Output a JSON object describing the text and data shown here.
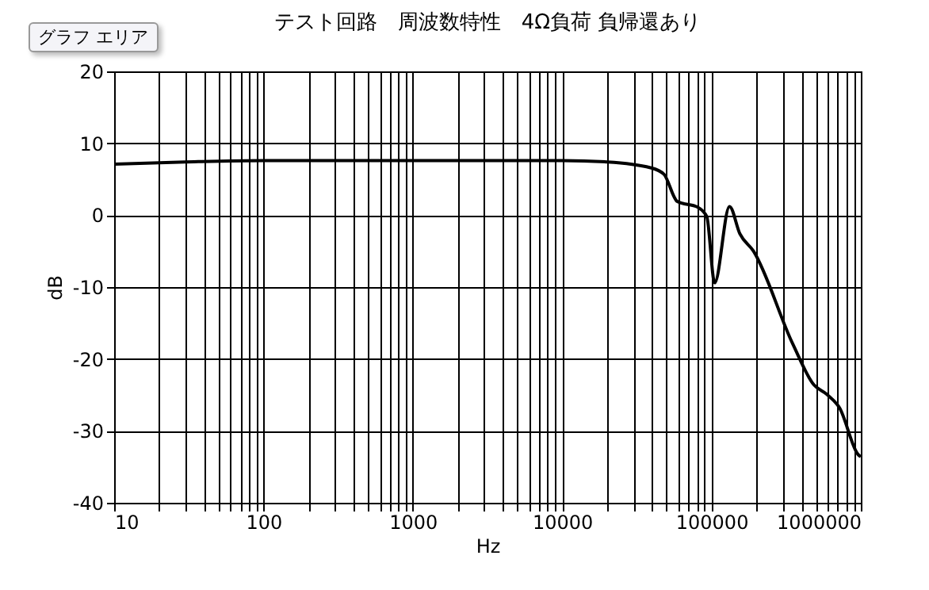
{
  "chart_data": {
    "type": "line",
    "title": "テスト回路　周波数特性　4Ω負荷 負帰還あり",
    "xlabel": "Hz",
    "ylabel": "dB",
    "annotations": [
      "グラフ エリア"
    ],
    "x": [
      10,
      30,
      100,
      300,
      1000,
      2630,
      10000,
      20000,
      39000,
      48000,
      59000,
      81000,
      93000,
      105000,
      132000,
      155000,
      191000,
      350000,
      485000,
      590000,
      720000,
      960000,
      1000000
    ],
    "series": [
      {
        "color": "#000000",
        "values": [
          7.1,
          7.4,
          7.6,
          7.6,
          7.6,
          7.6,
          7.6,
          7.4,
          6.6,
          5.7,
          1.9,
          1.1,
          -0.2,
          -9.4,
          1.2,
          -2.6,
          -5.0,
          -17.9,
          -23.6,
          -24.9,
          -26.8,
          -33.3,
          -33.6
        ]
      }
    ],
    "log": "x",
    "xlim": [
      10,
      1000000
    ],
    "ylim": [
      -40,
      20
    ],
    "yticks": [
      -40,
      -30,
      -20,
      -10,
      0,
      10,
      20
    ],
    "xticks": [
      10,
      {
        "value": 20,
        "label": null
      },
      {
        "value": 30,
        "label": null
      },
      {
        "value": 40,
        "label": null
      },
      {
        "value": 50,
        "label": null
      },
      {
        "value": 60,
        "label": null
      },
      {
        "value": 70,
        "label": null
      },
      {
        "value": 80,
        "label": null
      },
      {
        "value": 90,
        "label": null
      },
      100,
      {
        "value": 200,
        "label": null
      },
      {
        "value": 300,
        "label": null
      },
      {
        "value": 400,
        "label": null
      },
      {
        "value": 500,
        "label": null
      },
      {
        "value": 600,
        "label": null
      },
      {
        "value": 700,
        "label": null
      },
      {
        "value": 800,
        "label": null
      },
      {
        "value": 900,
        "label": null
      },
      1000,
      {
        "value": 2000,
        "label": null
      },
      {
        "value": 3000,
        "label": null
      },
      {
        "value": 4000,
        "label": null
      },
      {
        "value": 5000,
        "label": null
      },
      {
        "value": 6000,
        "label": null
      },
      {
        "value": 7000,
        "label": null
      },
      {
        "value": 8000,
        "label": null
      },
      {
        "value": 9000,
        "label": null
      },
      10000,
      {
        "value": 20000,
        "label": null
      },
      {
        "value": 30000,
        "label": null
      },
      {
        "value": 40000,
        "label": null
      },
      {
        "value": 50000,
        "label": null
      },
      {
        "value": 60000,
        "label": null
      },
      {
        "value": 70000,
        "label": null
      },
      {
        "value": 80000,
        "label": null
      },
      {
        "value": 90000,
        "label": null
      },
      100000,
      {
        "value": 200000,
        "label": null
      },
      {
        "value": 300000,
        "label": null
      },
      {
        "value": 400000,
        "label": null
      },
      {
        "value": 500000,
        "label": null
      },
      {
        "value": 600000,
        "label": null
      },
      {
        "value": 700000,
        "label": null
      },
      {
        "value": 800000,
        "label": null
      },
      {
        "value": 900000,
        "label": null
      },
      1000000
    ],
    "grid": true,
    "line_style": "solid"
  }
}
